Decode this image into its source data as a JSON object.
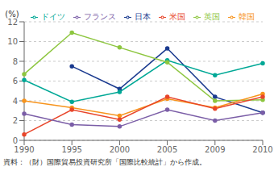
{
  "chart_data": {
    "type": "line",
    "ylabel": "(%)",
    "annotations": [
      "資料：（財）国際貿易投資研究所「国際比較統計」から作成。"
    ],
    "categories": [
      "1990",
      "1995",
      "2000",
      "2005",
      "2009",
      "2010"
    ],
    "series": [
      {
        "name": "日本",
        "color": "#1a3a8f",
        "marker": "circle",
        "line_style": "solid",
        "values": [
          null,
          7.5,
          5.2,
          9.3,
          4.4,
          2.8
        ]
      },
      {
        "name": "ドイツ",
        "color": "#00a896",
        "marker": "circle",
        "line_style": "solid",
        "values": [
          6.1,
          3.9,
          4.9,
          8.1,
          6.6,
          7.8
        ]
      },
      {
        "name": "英国",
        "color": "#8dc63f",
        "marker": "circle",
        "line_style": "solid",
        "values": [
          6.7,
          10.9,
          9.4,
          7.9,
          4.0,
          4.1
        ]
      },
      {
        "name": "韓国",
        "color": "#f7941d",
        "marker": "circle",
        "line_style": "solid",
        "values": [
          4.0,
          3.3,
          2.5,
          4.2,
          3.3,
          4.7
        ]
      },
      {
        "name": "米国",
        "color": "#e8452a",
        "marker": "circle",
        "line_style": "solid",
        "values": [
          0.6,
          3.1,
          2.1,
          4.4,
          3.2,
          4.4
        ]
      },
      {
        "name": "フランス",
        "color": "#7b5ea7",
        "marker": "circle",
        "line_style": "solid",
        "values": [
          2.7,
          1.6,
          1.4,
          3.1,
          2.0,
          2.8
        ]
      }
    ],
    "ylim": [
      0,
      12
    ],
    "yticks": [
      0,
      2,
      4,
      6,
      8,
      10,
      12
    ],
    "grid": true,
    "legend": "upper right"
  }
}
